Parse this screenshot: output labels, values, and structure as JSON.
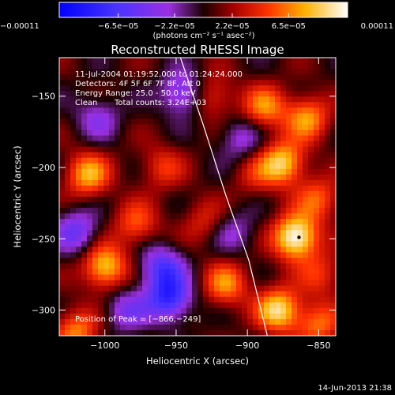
{
  "chart_data": {
    "type": "heatmap",
    "title": "Reconstructed RHESSI Image",
    "xlabel": "Heliocentric X (arcsec)",
    "ylabel": "Heliocentric Y (arcsec)",
    "xlim": [
      -1032,
      -838
    ],
    "ylim": [
      -318,
      -123
    ],
    "x_ticks": [
      {
        "value": -1000,
        "label": "−1000"
      },
      {
        "value": -950,
        "label": "−950"
      },
      {
        "value": -900,
        "label": "−900"
      },
      {
        "value": -850,
        "label": "−850"
      }
    ],
    "y_ticks": [
      {
        "value": -150,
        "label": "−150"
      },
      {
        "value": -200,
        "label": "−200"
      },
      {
        "value": -250,
        "label": "−250"
      },
      {
        "value": -300,
        "label": "−300"
      }
    ],
    "colorbar": {
      "range": [
        -0.00011,
        0.00011
      ],
      "ticks": [
        {
          "value": -0.00011,
          "label": "−0.00011"
        },
        {
          "value": -6.5e-05,
          "label": "−6.5e−05"
        },
        {
          "value": -2.2e-05,
          "label": "−2.2e−05"
        },
        {
          "value": 2.2e-05,
          "label": "2.2e−05"
        },
        {
          "value": 6.5e-05,
          "label": "6.5e−05"
        },
        {
          "value": 0.00011,
          "label": "0.00011"
        }
      ],
      "unit_label": "(photons cm⁻² s⁻¹ asec⁻²)"
    },
    "annotations": {
      "time_range": "11-Jul-2004 01:19:52.000 to 01:24:24.000",
      "detectors": "Detectors: 4F 5F 6F 7F 8F, Att 0",
      "energy": "Energy Range: 25.0 - 50.0 keV",
      "method": "Clean",
      "counts": "Total counts: 3.24E+03",
      "peak": "Position of Peak = [−866,−249]"
    },
    "peak_position": [
      -866,
      -249
    ],
    "limb_points": [
      [
        -947,
        -123
      ],
      [
        -931,
        -170
      ],
      [
        -915,
        -220
      ],
      [
        -899,
        -265
      ],
      [
        -886,
        -318
      ]
    ],
    "hotspots": [
      {
        "x": -866,
        "y": -249,
        "v": 1.0
      },
      {
        "x": -875,
        "y": -197,
        "v": 0.75
      },
      {
        "x": -888,
        "y": -158,
        "v": 0.55
      },
      {
        "x": -858,
        "y": -165,
        "v": 0.6
      },
      {
        "x": -850,
        "y": -222,
        "v": 0.45
      },
      {
        "x": -878,
        "y": -300,
        "v": 0.8
      },
      {
        "x": -850,
        "y": -310,
        "v": 0.5
      },
      {
        "x": -915,
        "y": -282,
        "v": 0.55
      },
      {
        "x": -925,
        "y": -150,
        "v": 0.4
      },
      {
        "x": -1012,
        "y": -205,
        "v": 0.65
      },
      {
        "x": -1000,
        "y": -270,
        "v": 0.75
      },
      {
        "x": -978,
        "y": -240,
        "v": 0.45
      },
      {
        "x": -960,
        "y": -200,
        "v": 0.35
      },
      {
        "x": -1020,
        "y": -315,
        "v": 0.55
      },
      {
        "x": -930,
        "y": -238,
        "v": 0.3
      },
      {
        "x": -960,
        "y": -270,
        "v": -0.6
      },
      {
        "x": -955,
        "y": -292,
        "v": -0.75
      },
      {
        "x": -945,
        "y": -148,
        "v": -0.55
      },
      {
        "x": -1005,
        "y": -165,
        "v": -0.35
      },
      {
        "x": -1020,
        "y": -245,
        "v": -0.5
      },
      {
        "x": -905,
        "y": -180,
        "v": -0.35
      },
      {
        "x": -910,
        "y": -245,
        "v": -0.3
      },
      {
        "x": -985,
        "y": -300,
        "v": -0.4
      },
      {
        "x": -895,
        "y": -205,
        "v": 0.25
      },
      {
        "x": -848,
        "y": -275,
        "v": 0.35
      }
    ]
  },
  "footer": {
    "timestamp": "14-Jun-2013 21:38"
  }
}
